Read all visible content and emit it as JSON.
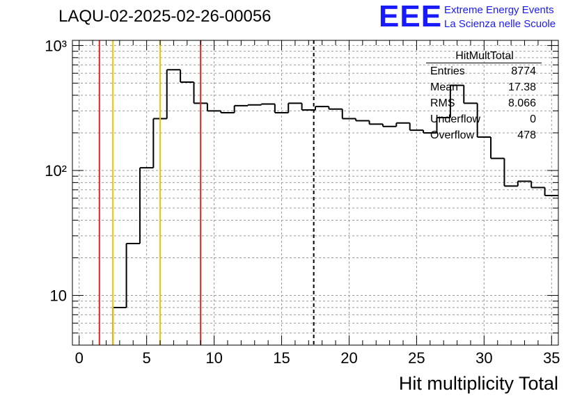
{
  "title": "LAQU-02-2025-02-26-00056",
  "logo": {
    "mark": "EEE",
    "line1": "Extreme Energy Events",
    "line2": "La Scienza nelle Scuole",
    "color": "#1a1aff"
  },
  "stats": {
    "title": "HitMultTotal",
    "rows": [
      {
        "label": "Entries",
        "value": "8774"
      },
      {
        "label": "Mean",
        "value": "17.38"
      },
      {
        "label": "RMS",
        "value": "8.066"
      },
      {
        "label": "Underflow",
        "value": "0"
      },
      {
        "label": "Overflow",
        "value": "478"
      }
    ]
  },
  "chart_data": {
    "type": "histogram",
    "xlabel": "Hit multiplicity Total",
    "ylabel": "",
    "xlim": [
      -0.5,
      35.5
    ],
    "ylim": [
      4,
      1100
    ],
    "ylog": true,
    "grid": true,
    "bin_width": 1,
    "bin_low_edges": [
      -0.5,
      0.5,
      1.5,
      2.5,
      3.5,
      4.5,
      5.5,
      6.5,
      7.5,
      8.5,
      9.5,
      10.5,
      11.5,
      12.5,
      13.5,
      14.5,
      15.5,
      16.5,
      17.5,
      18.5,
      19.5,
      20.5,
      21.5,
      22.5,
      23.5,
      24.5,
      25.5,
      26.5,
      27.5,
      28.5,
      29.5,
      30.5,
      31.5,
      32.5,
      33.5,
      34.5
    ],
    "values": [
      0,
      0,
      0,
      8,
      26,
      105,
      260,
      640,
      510,
      345,
      300,
      290,
      330,
      335,
      340,
      290,
      345,
      305,
      325,
      310,
      260,
      250,
      235,
      225,
      240,
      210,
      200,
      265,
      480,
      345,
      185,
      125,
      75,
      82,
      73,
      63
    ],
    "x_ticks": [
      0,
      5,
      10,
      15,
      20,
      25,
      30,
      35
    ],
    "y_tick_labels": [
      {
        "value": 10,
        "label": "10"
      },
      {
        "value": 100,
        "label": "10²"
      },
      {
        "value": 1000,
        "label": "10³"
      }
    ],
    "vertical_lines": [
      {
        "x": 1.5,
        "color": "#e8221c",
        "style": "solid"
      },
      {
        "x": 2.5,
        "color": "#f5c400",
        "style": "solid"
      },
      {
        "x": 6.0,
        "color": "#f5c400",
        "style": "solid"
      },
      {
        "x": 9.0,
        "color": "#e8221c",
        "style": "solid"
      },
      {
        "x": 17.38,
        "color": "#000000",
        "style": "dashed"
      }
    ]
  }
}
